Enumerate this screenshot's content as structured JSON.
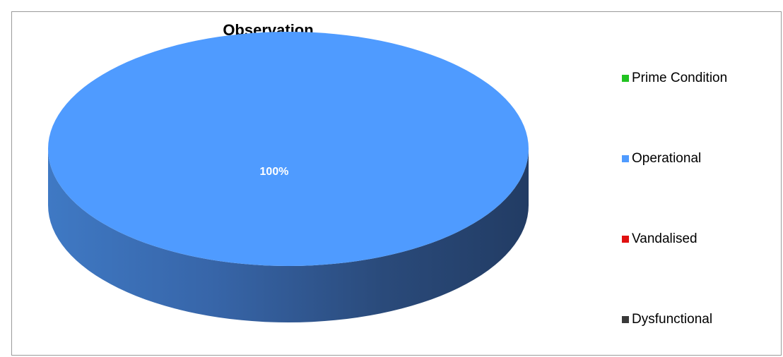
{
  "chart_data": {
    "type": "pie",
    "title": "Observation",
    "categories": [
      "Prime Condition",
      "Operational",
      "Vandalised",
      "Dysfunctional"
    ],
    "values": [
      0,
      100,
      0,
      0
    ],
    "unit": "%",
    "data_labels": [
      "",
      "100%",
      "",
      ""
    ],
    "colors": [
      "#21c321",
      "#4f9bff",
      "#e01010",
      "#3a3a3a"
    ],
    "legend_position": "right"
  }
}
